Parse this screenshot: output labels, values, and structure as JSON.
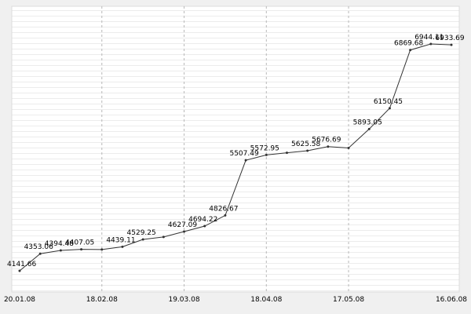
{
  "chart_data": {
    "type": "line",
    "categories": [
      "20.01.08",
      null,
      null,
      null,
      "18.02.08",
      null,
      null,
      null,
      "19.03.08",
      null,
      null,
      null,
      "18.04.08",
      null,
      null,
      null,
      "17.05.08",
      null,
      null,
      null,
      null,
      "16.06.08"
    ],
    "values": [
      4141.66,
      4353.06,
      4394.48,
      4407.05,
      4405,
      4439.11,
      4529.25,
      4560,
      4627.09,
      4694.22,
      4826.67,
      5507.49,
      5572.95,
      5600,
      5625.58,
      5676.69,
      5660,
      5893.05,
      6150.45,
      6869.68,
      6944.11,
      6933.69
    ],
    "value_labels": [
      "4141.66",
      "4353.06",
      "4394.48",
      "4407.05",
      null,
      "4439.11",
      "4529.25",
      null,
      "4627.09",
      "4694.22",
      "4826.67",
      "5507.49",
      "5572.95",
      null,
      "5625.58",
      "5676.69",
      null,
      "5893.05",
      "6150.45",
      "6869.68",
      "6944.11",
      "6933.69"
    ],
    "color": "#333333",
    "ylim": [
      3880,
      7410
    ],
    "grid": true
  }
}
